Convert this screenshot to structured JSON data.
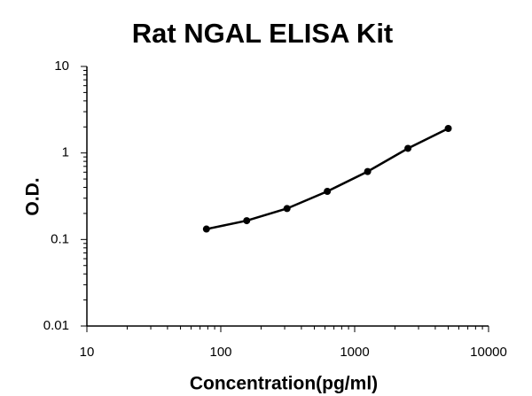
{
  "chart_data": {
    "type": "scatter-line",
    "title": "Rat NGAL ELISA Kit",
    "x_label": "Concentration(pg/ml)",
    "y_label": "O.D.",
    "x": [
      78.125,
      156.25,
      312.5,
      625,
      1250,
      2500,
      5000
    ],
    "series": [
      {
        "color": "#000000",
        "values": [
          0.132,
          0.165,
          0.228,
          0.36,
          0.61,
          1.13,
          1.92
        ]
      }
    ],
    "xlim": [
      10,
      10000
    ],
    "ylim": [
      0.01,
      10
    ],
    "xticks": [
      10,
      100,
      1000,
      10000
    ],
    "yticks": [
      0.01,
      0.1,
      1,
      10
    ],
    "xscale": "log",
    "yscale": "log",
    "grid": false
  }
}
